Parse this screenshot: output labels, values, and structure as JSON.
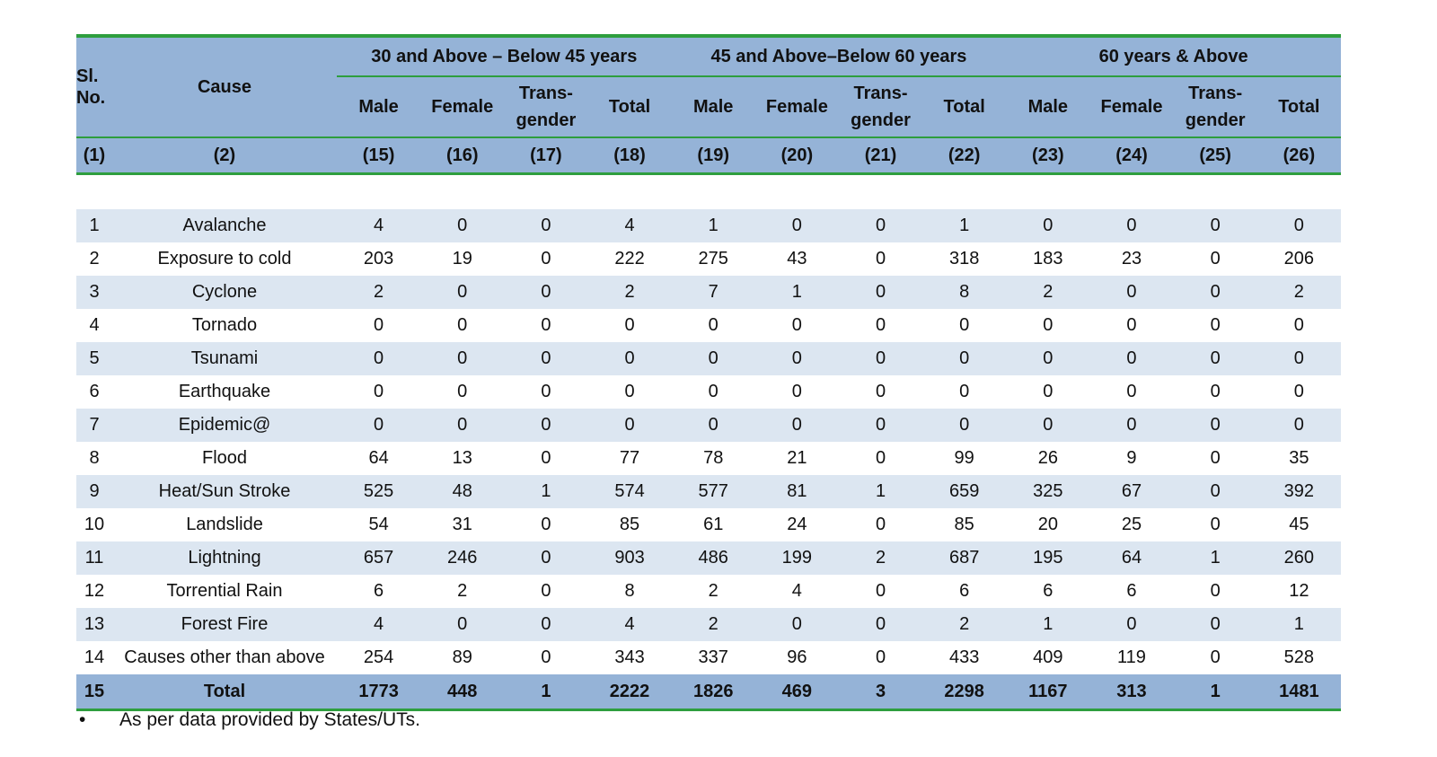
{
  "table": {
    "header": {
      "sl_no": "Sl. No.",
      "cause": "Cause",
      "groups": [
        "30 and Above – Below 45 years",
        "45 and Above–Below 60 years",
        "60 years & Above"
      ],
      "subheaders": [
        "Male",
        "Female",
        "Trans-gender",
        "Total",
        "Male",
        "Female",
        "Trans-gender",
        "Total",
        "Male",
        "Female",
        "Trans-gender",
        "Total"
      ],
      "col_numbers": [
        "(1)",
        "(2)",
        "(15)",
        "(16)",
        "(17)",
        "(18)",
        "(19)",
        "(20)",
        "(21)",
        "(22)",
        "(23)",
        "(24)",
        "(25)",
        "(26)"
      ]
    },
    "rows": [
      {
        "sl": 1,
        "cause": "Avalanche",
        "values": [
          4,
          0,
          0,
          4,
          1,
          0,
          0,
          1,
          0,
          0,
          0,
          0
        ]
      },
      {
        "sl": 2,
        "cause": "Exposure to cold",
        "values": [
          203,
          19,
          0,
          222,
          275,
          43,
          0,
          318,
          183,
          23,
          0,
          206
        ]
      },
      {
        "sl": 3,
        "cause": "Cyclone",
        "values": [
          2,
          0,
          0,
          2,
          7,
          1,
          0,
          8,
          2,
          0,
          0,
          2
        ]
      },
      {
        "sl": 4,
        "cause": "Tornado",
        "values": [
          0,
          0,
          0,
          0,
          0,
          0,
          0,
          0,
          0,
          0,
          0,
          0
        ]
      },
      {
        "sl": 5,
        "cause": "Tsunami",
        "values": [
          0,
          0,
          0,
          0,
          0,
          0,
          0,
          0,
          0,
          0,
          0,
          0
        ]
      },
      {
        "sl": 6,
        "cause": "Earthquake",
        "values": [
          0,
          0,
          0,
          0,
          0,
          0,
          0,
          0,
          0,
          0,
          0,
          0
        ]
      },
      {
        "sl": 7,
        "cause": "Epidemic@",
        "values": [
          0,
          0,
          0,
          0,
          0,
          0,
          0,
          0,
          0,
          0,
          0,
          0
        ]
      },
      {
        "sl": 8,
        "cause": "Flood",
        "values": [
          64,
          13,
          0,
          77,
          78,
          21,
          0,
          99,
          26,
          9,
          0,
          35
        ]
      },
      {
        "sl": 9,
        "cause": "Heat/Sun Stroke",
        "values": [
          525,
          48,
          1,
          574,
          577,
          81,
          1,
          659,
          325,
          67,
          0,
          392
        ]
      },
      {
        "sl": 10,
        "cause": "Landslide",
        "values": [
          54,
          31,
          0,
          85,
          61,
          24,
          0,
          85,
          20,
          25,
          0,
          45
        ]
      },
      {
        "sl": 11,
        "cause": "Lightning",
        "values": [
          657,
          246,
          0,
          903,
          486,
          199,
          2,
          687,
          195,
          64,
          1,
          260
        ]
      },
      {
        "sl": 12,
        "cause": "Torrential Rain",
        "values": [
          6,
          2,
          0,
          8,
          2,
          4,
          0,
          6,
          6,
          6,
          0,
          12
        ]
      },
      {
        "sl": 13,
        "cause": "Forest Fire",
        "values": [
          4,
          0,
          0,
          4,
          2,
          0,
          0,
          2,
          1,
          0,
          0,
          1
        ]
      },
      {
        "sl": 14,
        "cause": "Causes other than above",
        "values": [
          254,
          89,
          0,
          343,
          337,
          96,
          0,
          433,
          409,
          119,
          0,
          528
        ]
      }
    ],
    "total": {
      "sl": 15,
      "cause": "Total",
      "values": [
        1773,
        448,
        1,
        2222,
        1826,
        469,
        3,
        2298,
        1167,
        313,
        1,
        1481
      ]
    },
    "footnote": "As per data provided by States/UTs."
  }
}
